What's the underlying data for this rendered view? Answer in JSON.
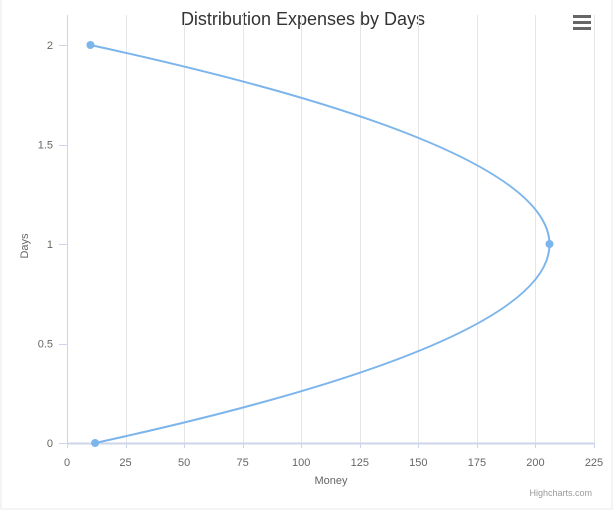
{
  "chart_data": {
    "type": "line",
    "title": "Distribution Expenses by Days",
    "xlabel": "Money",
    "ylabel": "Days",
    "xlim": [
      0,
      225
    ],
    "ylim": [
      0,
      2
    ],
    "xticks": [
      0,
      25,
      50,
      75,
      100,
      125,
      150,
      175,
      200,
      225
    ],
    "yticks": [
      0,
      0.5,
      1,
      1.5,
      2
    ],
    "grid": {
      "vertical": true,
      "horizontal": false
    },
    "legend": "none",
    "series": [
      {
        "color": "#7cb5ec",
        "smooth": true,
        "points": [
          {
            "x": 10,
            "y": 2
          },
          {
            "x": 206,
            "y": 1
          },
          {
            "x": 12,
            "y": 0
          }
        ]
      }
    ]
  },
  "ui": {
    "menu_icon": "hamburger-menu-icon",
    "credits": "Highcharts.com"
  }
}
